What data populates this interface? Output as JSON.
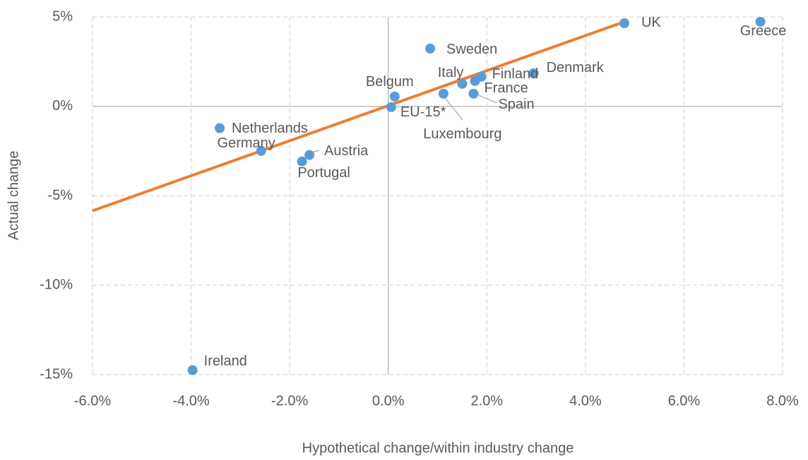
{
  "chart_data": {
    "type": "scatter",
    "x_label": "Hypothetical change/within industry change",
    "y_label": "Actual change",
    "labels": [
      "UK",
      "Greece",
      "Sweden",
      "Denmark",
      "Finland",
      "Italy",
      "France",
      "Spain",
      "Luxembourg",
      "Belgum",
      "EU-15*",
      "Netherlands",
      "Germany",
      "Austria",
      "Portugal",
      "Ireland"
    ],
    "x": [
      4.79,
      7.55,
      0.85,
      2.95,
      1.89,
      1.5,
      1.76,
      1.73,
      1.12,
      0.13,
      0.06,
      -3.42,
      -2.58,
      -1.6,
      -1.75,
      -3.97
    ],
    "y": [
      4.65,
      4.73,
      3.23,
      1.85,
      1.66,
      1.26,
      1.42,
      0.71,
      0.71,
      0.55,
      -0.04,
      -1.22,
      -2.49,
      -2.72,
      -3.08,
      -14.75
    ],
    "color": "#5b9bd5",
    "trendline": {
      "x": [
        -6,
        4.79
      ],
      "y": [
        -5.84,
        4.73
      ],
      "color": "#ed7d31"
    },
    "xlim": [
      -6,
      8
    ],
    "ylim": [
      -15,
      5
    ],
    "xticks": [
      {
        "value": -6,
        "label": "-6.0%"
      },
      {
        "value": -4,
        "label": "-4.0%"
      },
      {
        "value": -2,
        "label": "-2.0%"
      },
      {
        "value": 0,
        "label": "0.0%"
      },
      {
        "value": 2,
        "label": "2.0%"
      },
      {
        "value": 4,
        "label": "4.0%"
      },
      {
        "value": 6,
        "label": "6.0%"
      },
      {
        "value": 8,
        "label": "8.0%"
      }
    ],
    "yticks": [
      {
        "value": -15,
        "label": "-15%"
      },
      {
        "value": -10,
        "label": "-10%"
      },
      {
        "value": -5,
        "label": "-5%"
      },
      {
        "value": 0,
        "label": "0%"
      },
      {
        "value": 5,
        "label": "5%"
      }
    ],
    "grid": true
  }
}
